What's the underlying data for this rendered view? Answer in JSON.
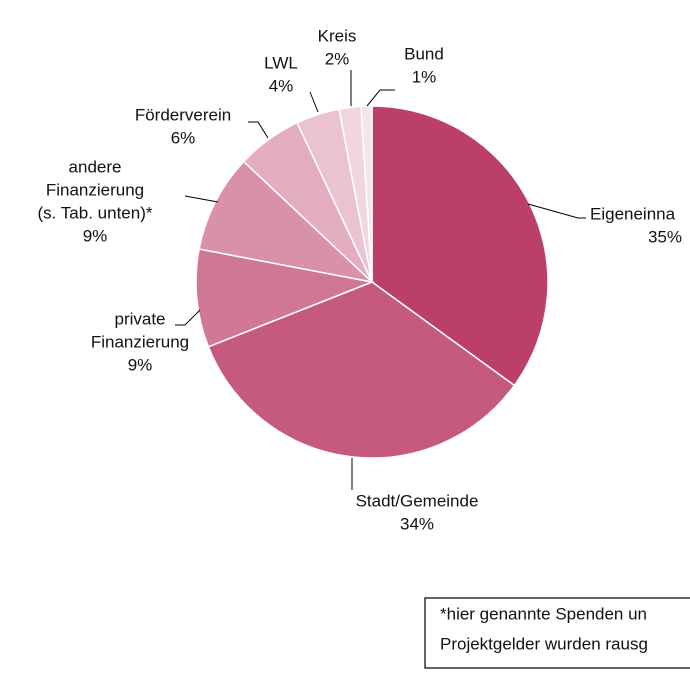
{
  "chart_data": {
    "type": "pie",
    "categories": [
      [
        "Eigeneinna"
      ],
      [
        "Stadt/Gemeinde"
      ],
      [
        "private",
        "Finanzierung"
      ],
      [
        "andere",
        "Finanzierung",
        "(s. Tab. unten)*"
      ],
      [
        "Förderverein"
      ],
      [
        "LWL"
      ],
      [
        "Kreis"
      ],
      [
        "Bund"
      ]
    ],
    "values": [
      35,
      34,
      9,
      9,
      6,
      4,
      2,
      1
    ],
    "value_labels": [
      "35%",
      "34%",
      "9%",
      "9%",
      "6%",
      "4%",
      "2%",
      "1%"
    ],
    "colors": [
      "#bb3f66",
      "#c65a7e",
      "#cf7795",
      "#d991aa",
      "#e3adbf",
      "#ebc3d0",
      "#f1d6df",
      "#f6e6ec"
    ],
    "note": [
      "*hier genannte Spenden un",
      "Projektgelder wurden rausg"
    ]
  }
}
